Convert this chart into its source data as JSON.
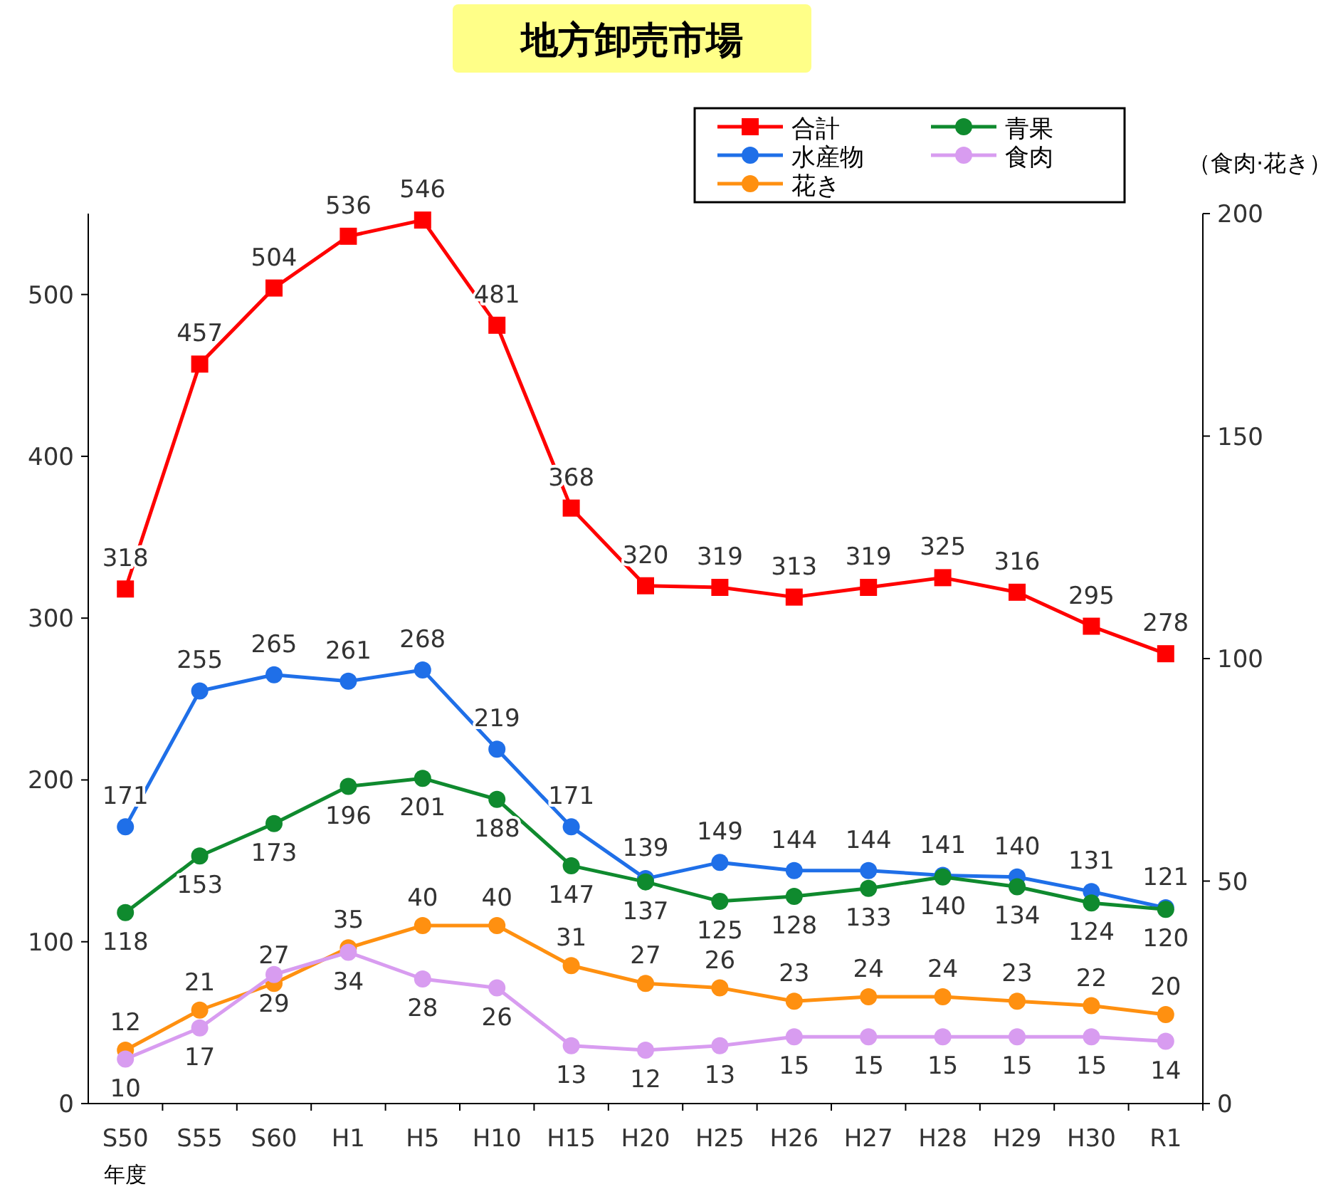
{
  "chart_data": {
    "type": "line",
    "title": "地方卸売市場",
    "y2label": "（食肉·花き）",
    "annotations": [
      "年度"
    ],
    "categories": [
      "S50",
      "S55",
      "S60",
      "H1",
      "H5",
      "H10",
      "H15",
      "H20",
      "H25",
      "H26",
      "H27",
      "H28",
      "H29",
      "H30",
      "R1"
    ],
    "ylim": [
      0,
      550
    ],
    "yticks": [
      0,
      100,
      200,
      300,
      400,
      500
    ],
    "y2lim": [
      0,
      200
    ],
    "y2ticks": [
      0,
      50,
      100,
      150,
      200
    ],
    "grid": false,
    "legend": "top right",
    "data_labels": true,
    "series": [
      {
        "name": "合計",
        "color": "#ff0000",
        "marker": "square",
        "values": [
          318,
          457,
          504,
          536,
          546,
          481,
          368,
          320,
          319,
          313,
          319,
          325,
          316,
          295,
          278
        ]
      },
      {
        "name": "水産物",
        "color": "#1f6fe8",
        "marker": "circle",
        "values": [
          171,
          255,
          265,
          261,
          268,
          219,
          171,
          139,
          149,
          144,
          144,
          141,
          140,
          131,
          121
        ]
      },
      {
        "name": "花き",
        "color": "#ff9010",
        "marker": "circle",
        "axis": "y2",
        "values": [
          12,
          21,
          27,
          35,
          40,
          40,
          31,
          27,
          26,
          23,
          24,
          24,
          23,
          22,
          20
        ]
      },
      {
        "name": "青果",
        "color": "#0f8a2e",
        "marker": "circle",
        "values": [
          118,
          153,
          173,
          196,
          201,
          188,
          147,
          137,
          125,
          128,
          133,
          140,
          134,
          124,
          120
        ]
      },
      {
        "name": "食肉",
        "color": "#d89cf0",
        "marker": "circle",
        "axis": "y2",
        "values": [
          10,
          17,
          29,
          34,
          28,
          26,
          13,
          12,
          13,
          15,
          15,
          15,
          15,
          15,
          14
        ]
      }
    ]
  }
}
